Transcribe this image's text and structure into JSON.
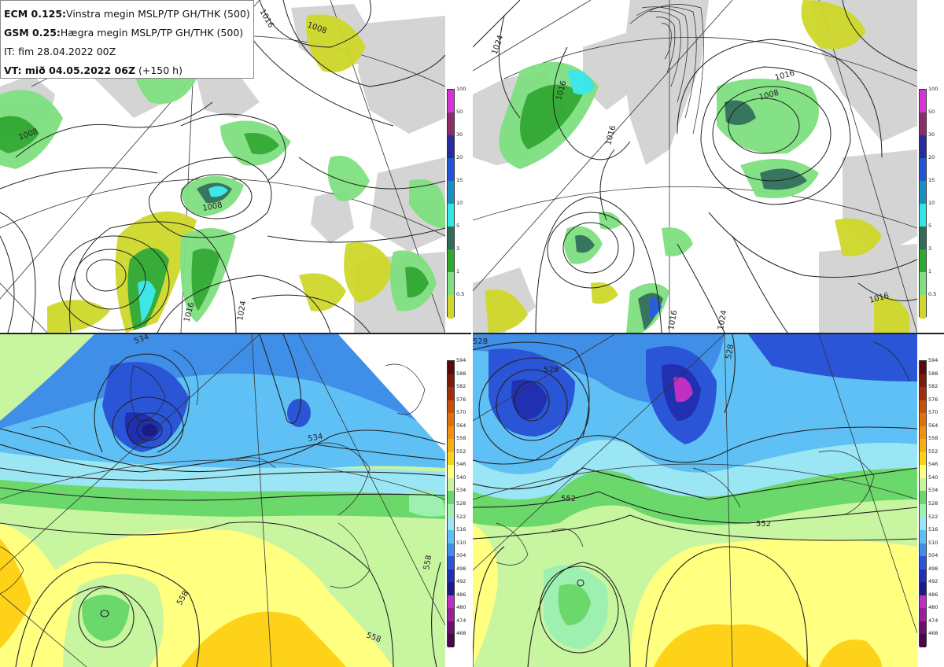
{
  "info": {
    "line1_bold": "ECM 0.125:",
    "line1_text": "Vinstra megin MSLP/TP GH/THK (500)",
    "line2_bold": "GSM 0.25:",
    "line2_text": "Hægra megin MSLP/TP GH/THK (500)",
    "line3": "IT: fim 28.04.2022 00Z",
    "line4_bold": "VT: mið 04.05.2022 06Z",
    "line4_text": "(+150 h)"
  },
  "precip_scale": {
    "labels": [
      "100",
      "50",
      "30",
      "20",
      "15",
      "10",
      "5",
      "3",
      "1",
      "0.5"
    ],
    "colors": [
      "#d633d6",
      "#8b2d6b",
      "#2a2aa0",
      "#1f55d6",
      "#1a8fc2",
      "#33e6e6",
      "#2e6e57",
      "#2ea82e",
      "#7fe07f",
      "#cfd82a"
    ]
  },
  "thickness_scale": {
    "labels": [
      "594",
      "588",
      "582",
      "576",
      "570",
      "564",
      "558",
      "552",
      "546",
      "540",
      "534",
      "528",
      "522",
      "516",
      "510",
      "504",
      "498",
      "492",
      "486",
      "480",
      "474",
      "468"
    ],
    "colors": [
      "#5a0a0a",
      "#7a1a0a",
      "#a0300a",
      "#c8500a",
      "#e0700a",
      "#f09010",
      "#f5b015",
      "#ffd21a",
      "#ffff80",
      "#c8f5a0",
      "#6ad86a",
      "#9ef0b0",
      "#9ae6f5",
      "#5fc0f5",
      "#3f8fe8",
      "#2a55d6",
      "#2030b0",
      "#1a1a8a",
      "#c030c0",
      "#9a209a",
      "#6a106a",
      "#4a084a"
    ]
  },
  "maps": {
    "ecm_mslp": {
      "labels": [
        "1008",
        "1016",
        "1008",
        "1008",
        "1016",
        "1024"
      ]
    },
    "gsm_mslp": {
      "labels": [
        "1024",
        "1016",
        "1016",
        "1016",
        "1008",
        "1016",
        "1024",
        "1016"
      ]
    },
    "ecm_thk": {
      "labels": [
        "534",
        "534",
        "558",
        "558",
        "558"
      ]
    },
    "gsm_thk": {
      "labels": [
        "528",
        "528",
        "552",
        "552"
      ]
    }
  },
  "colors": {
    "land": "#d4d4d4",
    "sea": "#ffffff",
    "contour": "#222222"
  }
}
